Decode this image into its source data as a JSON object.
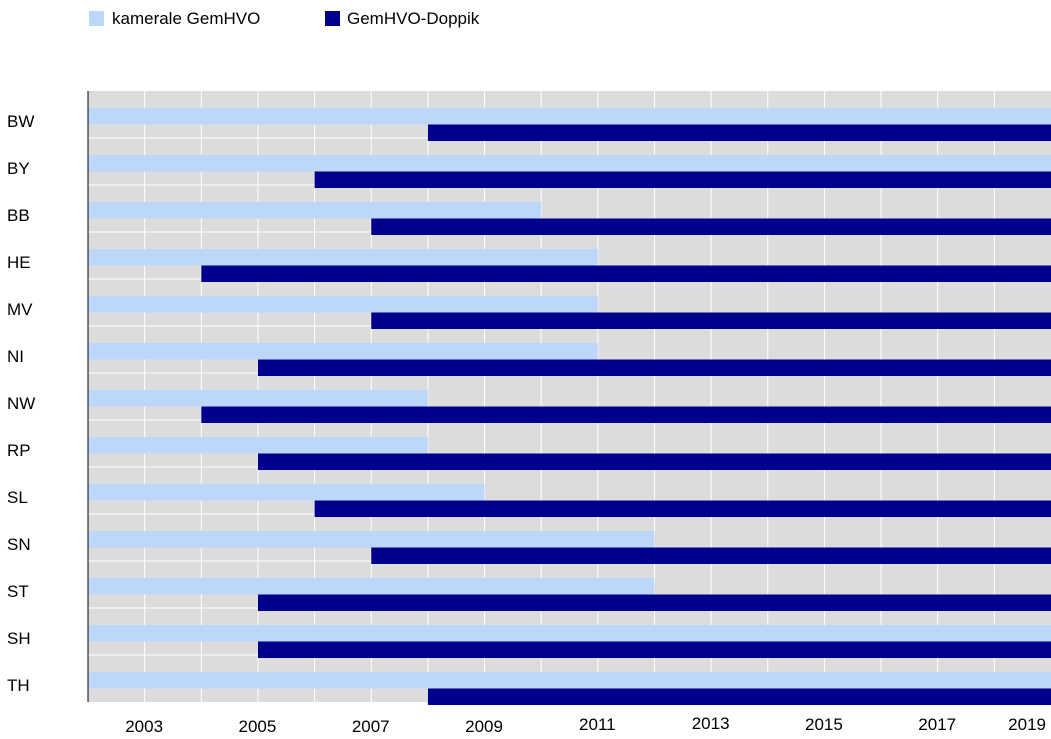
{
  "chart_data": {
    "type": "bar",
    "orientation": "horizontal",
    "title": "",
    "xlabel": "",
    "ylabel": "",
    "xlim": [
      2002,
      2019
    ],
    "x_ticks": [
      2003,
      2005,
      2007,
      2009,
      2011,
      2013,
      2015,
      2017,
      2019
    ],
    "grid": true,
    "legend": "top-left",
    "categories": [
      "BW",
      "BY",
      "BB",
      "HE",
      "MV",
      "NI",
      "NW",
      "RP",
      "SL",
      "SN",
      "ST",
      "SH",
      "TH"
    ],
    "series": [
      {
        "name": "kamerale GemHVO",
        "color": "#bdd7fa",
        "start": [
          2002,
          2002,
          2002,
          2002,
          2002,
          2002,
          2002,
          2002,
          2002,
          2002,
          2002,
          2002,
          2002
        ],
        "end": [
          2019,
          2019,
          2010,
          2011,
          2011,
          2011,
          2008,
          2008,
          2009,
          2012,
          2012,
          2019,
          2019
        ]
      },
      {
        "name": "GemHVO-Doppik",
        "color": "#00008c",
        "start": [
          2008,
          2006,
          2007,
          2004,
          2007,
          2005,
          2004,
          2005,
          2006,
          2007,
          2005,
          2005,
          2008
        ],
        "end": [
          2019,
          2019,
          2019,
          2019,
          2019,
          2019,
          2019,
          2019,
          2019,
          2019,
          2019,
          2019,
          2019
        ]
      }
    ]
  }
}
